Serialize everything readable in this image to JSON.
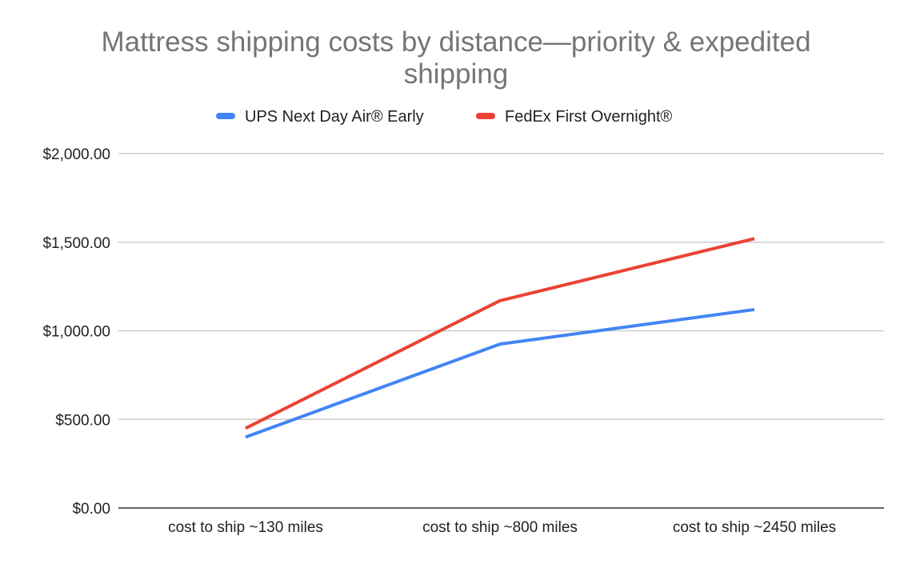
{
  "chart_data": {
    "type": "line",
    "title": "Mattress shipping costs by distance—priority & expedited shipping",
    "title_lines": [
      "Mattress shipping costs by distance—priority & expedited",
      "shipping"
    ],
    "categories": [
      "cost to ship ~130 miles",
      "cost to ship ~800 miles",
      "cost to ship ~2450 miles"
    ],
    "series": [
      {
        "name": "UPS Next Day Air® Early",
        "color": "#4285f4",
        "values": [
          400,
          925,
          1120
        ]
      },
      {
        "name": "FedEx First Overnight®",
        "color": "#ea4335",
        "values": [
          450,
          1170,
          1520
        ]
      }
    ],
    "ylim": [
      0,
      2000
    ],
    "yticks": [
      0,
      500,
      1000,
      1500,
      2000
    ],
    "ytick_labels": [
      "$0.00",
      "$500.00",
      "$1,000.00",
      "$1,500.00",
      "$2,000.00"
    ],
    "grid": true,
    "legend_position": "top"
  }
}
